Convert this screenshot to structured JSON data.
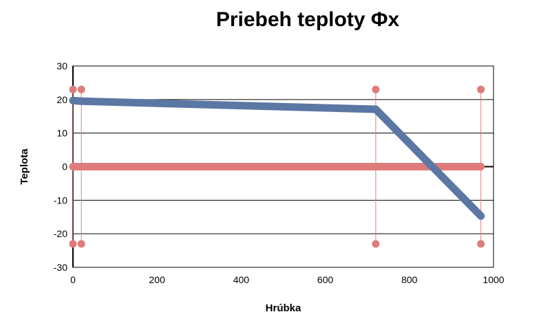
{
  "chart_data": {
    "type": "line",
    "title": "Priebeh teploty Φx",
    "xlabel": "Hrúbka",
    "ylabel": "Teplota",
    "xlim": [
      0,
      1000
    ],
    "ylim": [
      -30,
      30
    ],
    "xticks": [
      0,
      200,
      400,
      600,
      800,
      1000
    ],
    "yticks": [
      -30,
      -20,
      -10,
      0,
      10,
      20,
      30
    ],
    "grid": "horizontal",
    "colors": {
      "temperature": "#5b77a3",
      "layers": "#e07b7b"
    },
    "series": [
      {
        "values": [
          [
            0,
            19.7
          ],
          [
            20,
            19.5
          ],
          [
            720,
            17.1
          ],
          [
            970,
            -14.7
          ]
        ]
      }
    ],
    "layer_boundaries": [
      0,
      20,
      720,
      970
    ],
    "layer_band": [
      -23,
      23
    ]
  }
}
